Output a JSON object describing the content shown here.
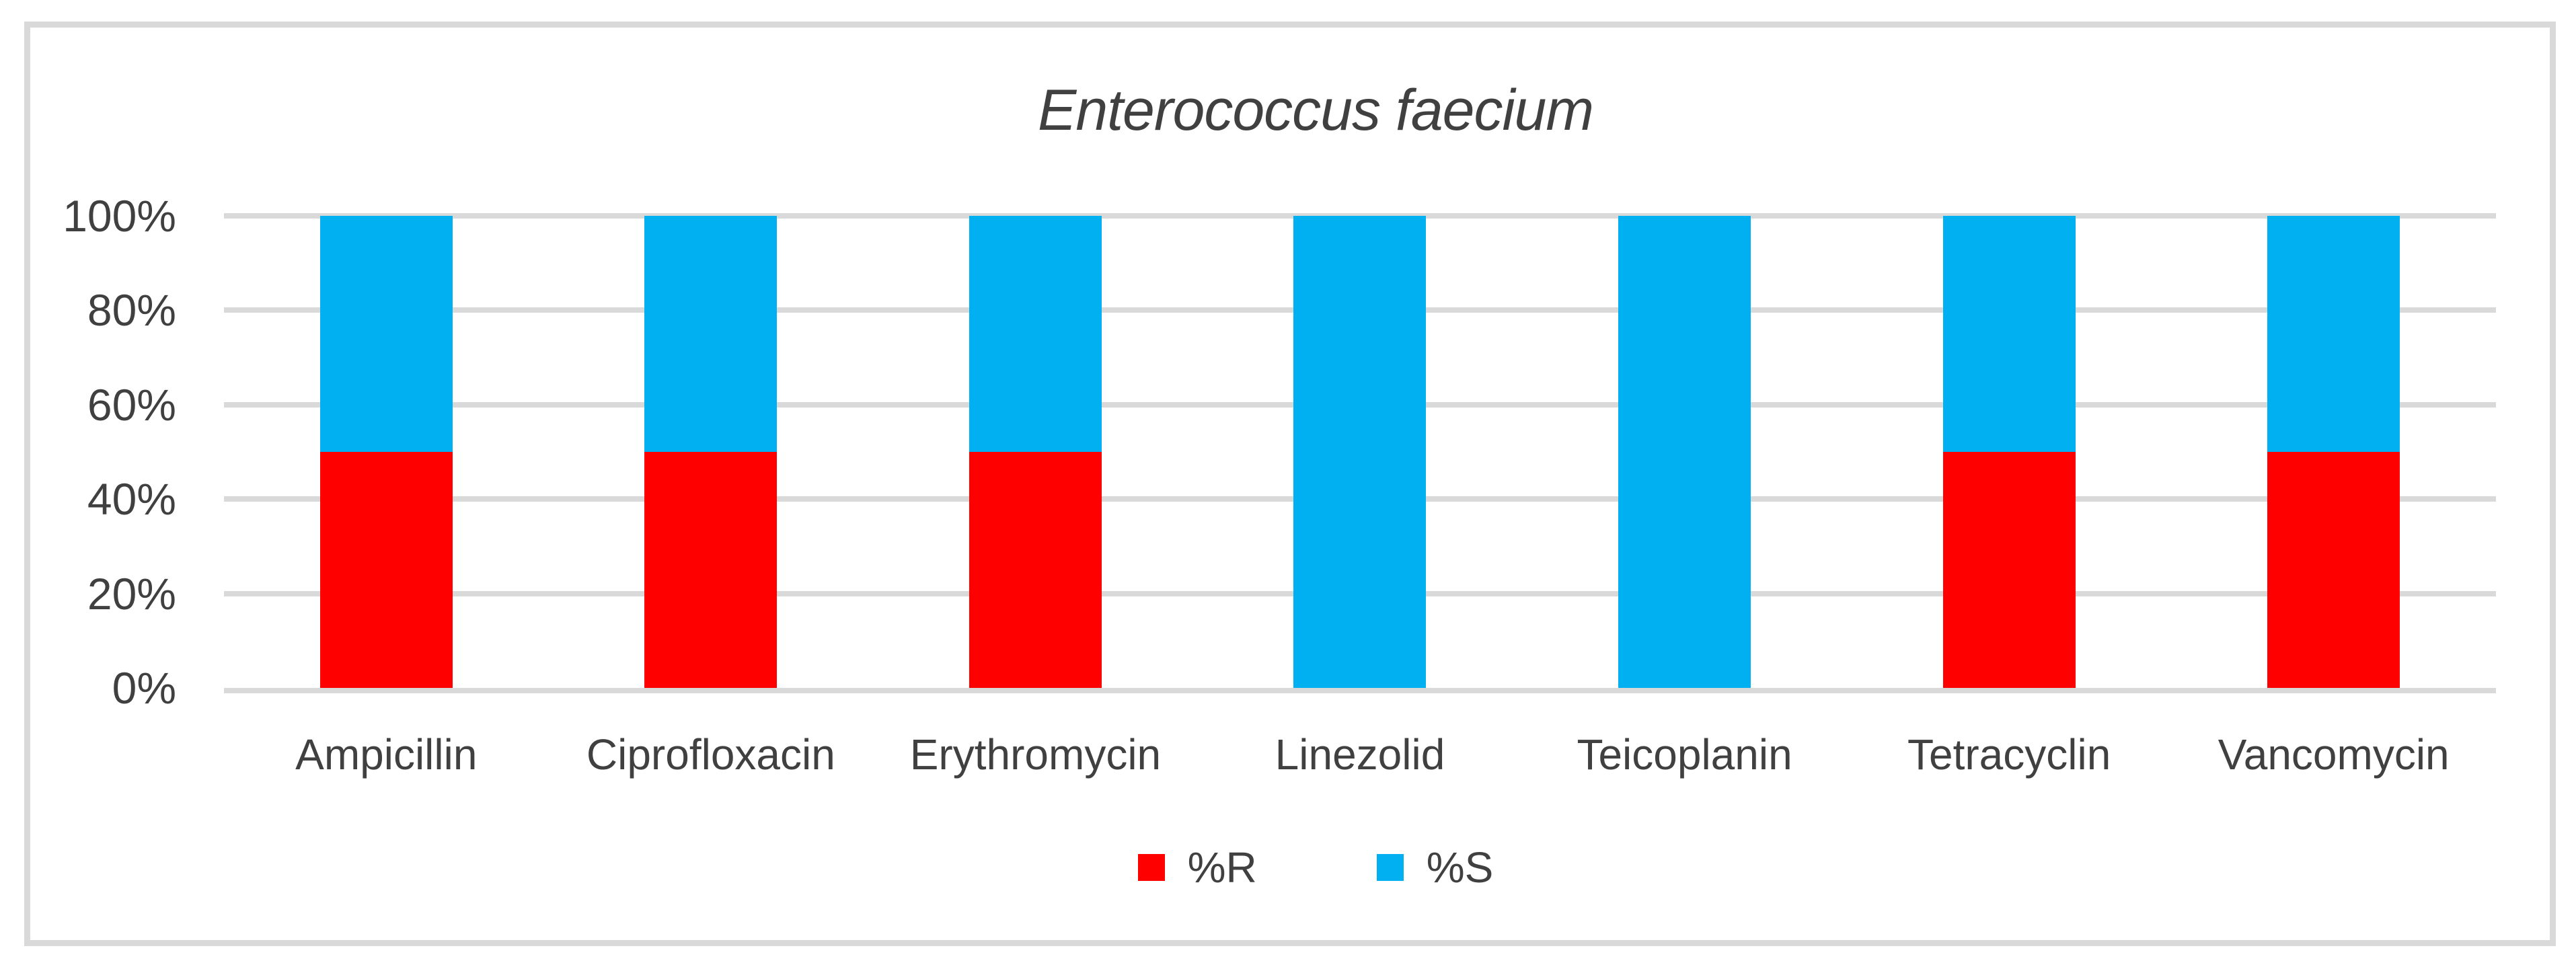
{
  "chart_data": {
    "type": "bar",
    "stacked": true,
    "orientation": "vertical",
    "title": "Enterococcus faecium",
    "title_style": "italic",
    "categories": [
      "Ampicillin",
      "Ciprofloxacin",
      "Erythromycin",
      "Linezolid",
      "Teicoplanin",
      "Tetracyclin",
      "Vancomycin"
    ],
    "series": [
      {
        "name": "%R",
        "color": "#FF0000",
        "values": [
          50,
          50,
          50,
          0,
          0,
          50,
          50
        ]
      },
      {
        "name": "%S",
        "color": "#00B0F0",
        "values": [
          50,
          50,
          50,
          100,
          100,
          50,
          50
        ]
      }
    ],
    "xlabel": "",
    "ylabel": "",
    "ylim": [
      0,
      100
    ],
    "yticks": [
      0,
      20,
      40,
      60,
      80,
      100
    ],
    "ytick_labels": [
      "0%",
      "20%",
      "40%",
      "60%",
      "80%",
      "100%"
    ],
    "grid": "horizontal",
    "legend_position": "bottom",
    "colors": {
      "gridline": "#D9D9D9",
      "frame_border": "#D9D9D9",
      "text": "#404040",
      "background": "#FFFFFF"
    }
  }
}
